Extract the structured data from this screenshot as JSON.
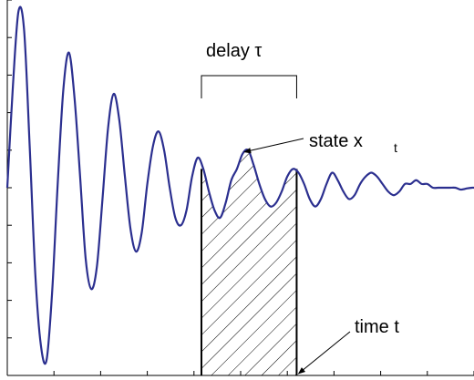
{
  "chart_data": {
    "type": "line",
    "title": "",
    "xlabel": "",
    "ylabel": "",
    "xlim": [
      0,
      50
    ],
    "ylim": [
      -5,
      5
    ],
    "grid": false,
    "x_ticks_count": 10,
    "y_ticks_count": 10,
    "series": [
      {
        "color": "#2b2f8f",
        "x": [
          0.0,
          0.6,
          1.2,
          1.8,
          2.4,
          3.0,
          3.6,
          4.2,
          4.8,
          5.4,
          6.0,
          6.6,
          7.2,
          7.8,
          8.4,
          9.0,
          9.6,
          10.2,
          10.8,
          11.4,
          12.0,
          12.6,
          13.2,
          13.8,
          14.4,
          15.0,
          15.6,
          16.2,
          16.8,
          17.4,
          18.0,
          18.6,
          19.2,
          19.8,
          20.4,
          21.0,
          21.6,
          22.2,
          22.8,
          23.4,
          24.0,
          24.6,
          25.2,
          25.8,
          26.4,
          27.0,
          27.6,
          28.2,
          28.8,
          29.4,
          30.0,
          30.6,
          31.2,
          31.8,
          32.4,
          33.0,
          33.6,
          34.2,
          34.8,
          35.4,
          36.0,
          36.6,
          37.2,
          37.8,
          38.4,
          39.0,
          39.6,
          40.2,
          40.8,
          41.4,
          42.0,
          42.6,
          43.2,
          43.8,
          44.4,
          45.0,
          45.6,
          46.2,
          46.8,
          47.4,
          48.0,
          48.6,
          49.2,
          49.8,
          50.0
        ],
        "values": [
          0.0,
          2.7,
          4.7,
          4.2,
          1.1,
          -2.3,
          -4.2,
          -4.6,
          -2.8,
          0.1,
          2.6,
          3.6,
          2.4,
          0.3,
          -1.9,
          -2.7,
          -2.1,
          -0.3,
          1.6,
          2.5,
          1.8,
          0.3,
          -1.1,
          -1.7,
          -1.2,
          0.1,
          1.1,
          1.5,
          1.0,
          0.0,
          -0.8,
          -1.0,
          -0.6,
          0.3,
          0.8,
          0.5,
          -0.1,
          -0.6,
          -0.8,
          -0.4,
          0.2,
          0.5,
          0.9,
          1.0,
          0.6,
          0.1,
          -0.3,
          -0.5,
          -0.4,
          -0.1,
          0.3,
          0.5,
          0.4,
          0.1,
          -0.3,
          -0.5,
          -0.3,
          0.1,
          0.4,
          0.2,
          -0.1,
          -0.3,
          -0.2,
          0.1,
          0.3,
          0.4,
          0.3,
          0.1,
          -0.1,
          -0.2,
          -0.1,
          0.1,
          0.1,
          0.2,
          0.1,
          0.1,
          0.0,
          0.0,
          0.0,
          0.0,
          0.0,
          -0.05,
          -0.02,
          0.0,
          0.0
        ]
      }
    ],
    "shaded_region": {
      "x_start": 20.8,
      "x_end": 31.0,
      "pattern": "diagonal-hatch"
    },
    "bracket": {
      "x_start": 20.8,
      "x_end": 31.0,
      "label": "delay τ"
    },
    "annotations": [
      {
        "text": "state  x",
        "subscript": "t",
        "arrow_to": {
          "x": 25.0,
          "y": 1.0
        }
      },
      {
        "text": "time t",
        "arrow_to": {
          "x": 31.0,
          "y": -5.0
        }
      }
    ]
  }
}
